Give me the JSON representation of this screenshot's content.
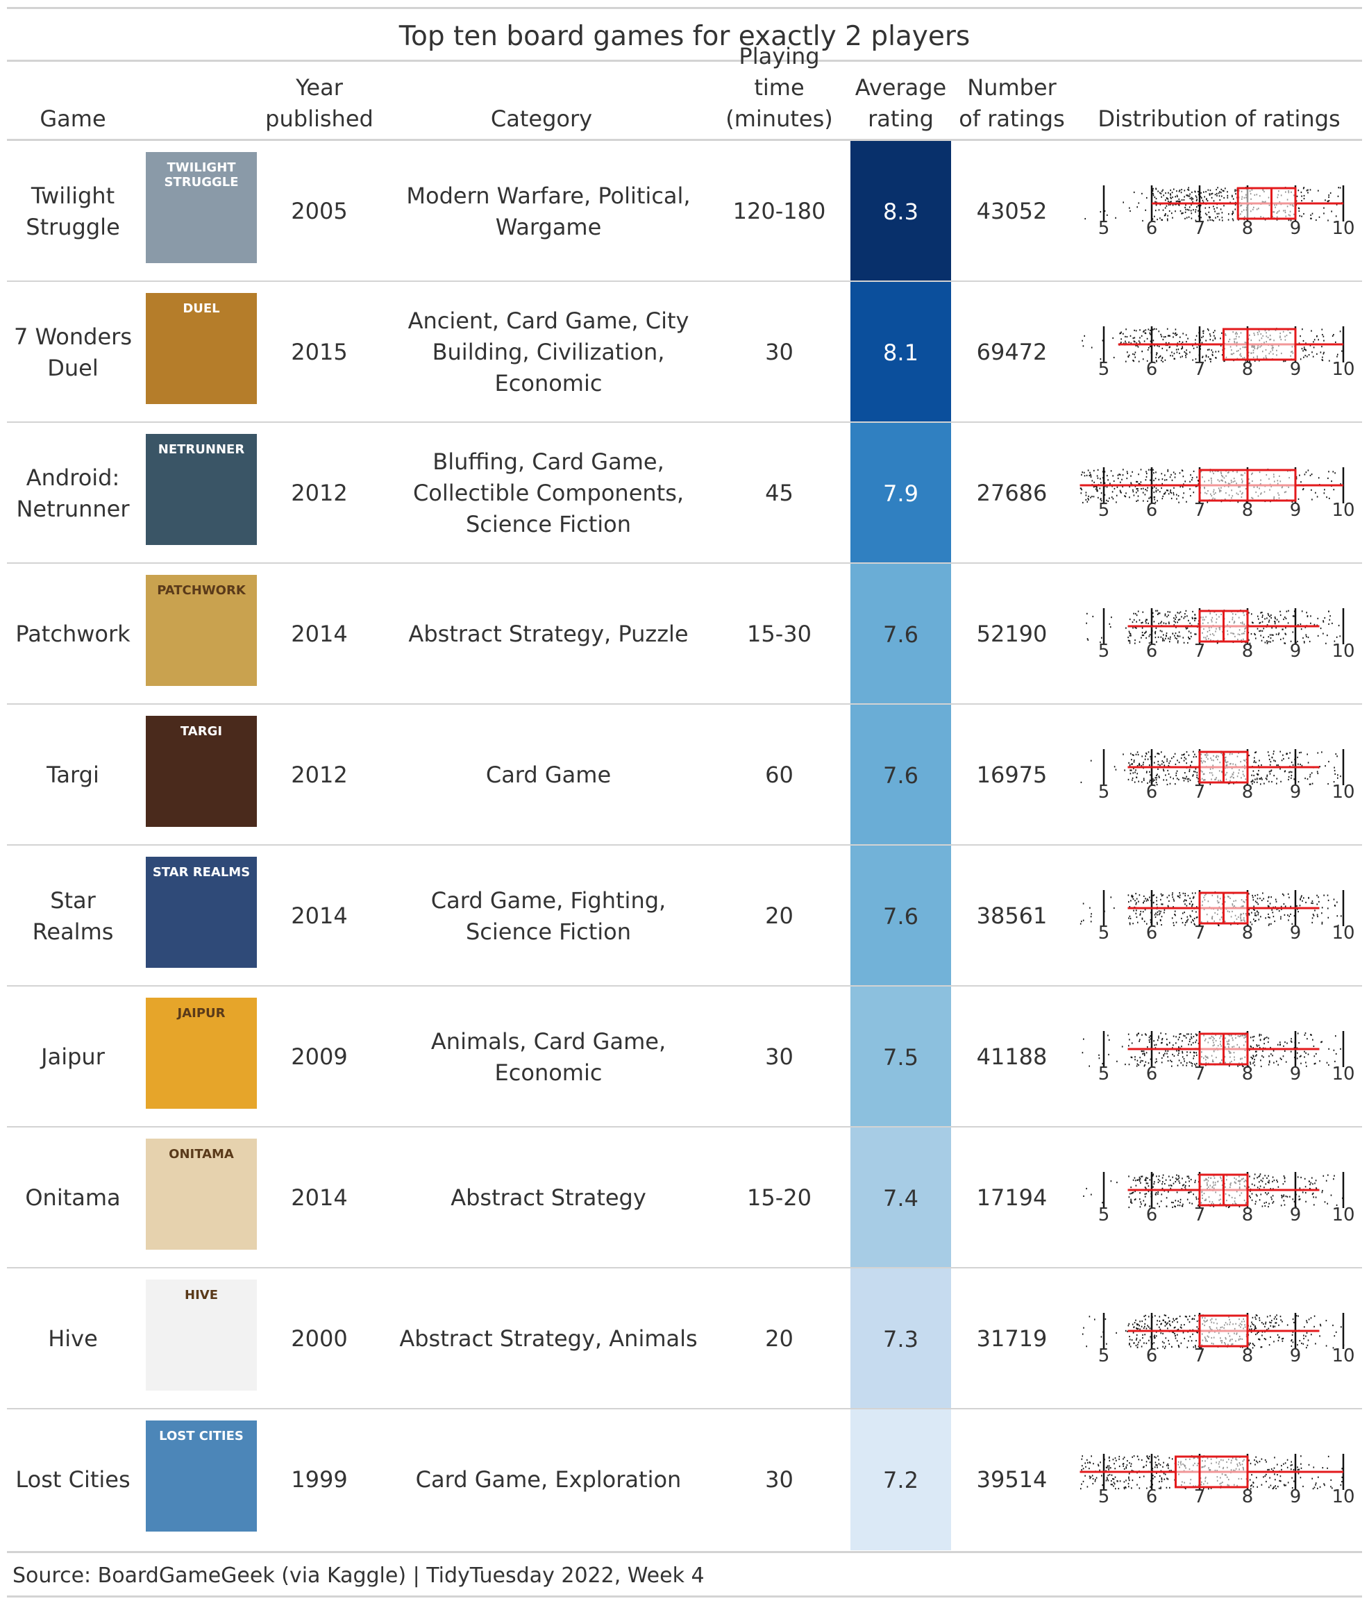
{
  "title": "Top ten board games for exactly 2 players",
  "columns": {
    "game": "Game",
    "year": "Year\npublished",
    "category": "Category",
    "time": "Playing time\n(minutes)",
    "rating": "Average\nrating",
    "num": "Number\nof ratings",
    "dist": "Distribution of ratings"
  },
  "source": "Source: BoardGameGeek (via Kaggle) | TidyTuesday 2022, Week 4",
  "colors": {
    "box": "#e31a1c",
    "points": "#111111",
    "text_dark": "#333333",
    "text_light": "#ffffff"
  },
  "axis_ticks": [
    "5",
    "6",
    "7",
    "8",
    "9",
    "10"
  ],
  "chart_data": {
    "type": "table",
    "distribution_axis": {
      "xlim": [
        4.5,
        10
      ],
      "ticks": [
        5,
        6,
        7,
        8,
        9,
        10
      ]
    },
    "rows": [
      {
        "game": "Twilight Struggle",
        "year": "2005",
        "category": "Modern Warfare, Political, Wargame",
        "time": "120-180",
        "rating": "8.3",
        "num_ratings": "43052",
        "rating_value": 8.3,
        "fill": "#08306b",
        "text_color": "#ffffff",
        "cover_text": "TWILIGHT STRUGGLE",
        "cover_bg": "#8a9aa8",
        "box": {
          "lower": 6.0,
          "q1": 7.8,
          "median": 8.5,
          "q3": 9.0,
          "upper": 10
        }
      },
      {
        "game": "7 Wonders Duel",
        "year": "2015",
        "category": "Ancient, Card Game, City Building, Civilization, Economic",
        "time": "30",
        "rating": "8.1",
        "num_ratings": "69472",
        "rating_value": 8.1,
        "fill": "#0b4f9c",
        "text_color": "#ffffff",
        "cover_text": "DUEL",
        "cover_bg": "#b57d2a",
        "box": {
          "lower": 5.3,
          "q1": 7.5,
          "median": 8.0,
          "q3": 9.0,
          "upper": 10
        }
      },
      {
        "game": "Android: Netrunner",
        "year": "2012",
        "category": "Bluffing, Card Game, Collectible Components, Science Fiction",
        "time": "45",
        "rating": "7.9",
        "num_ratings": "27686",
        "rating_value": 7.9,
        "fill": "#3080c1",
        "text_color": "#ffffff",
        "cover_text": "NETRUNNER",
        "cover_bg": "#3a5566",
        "box": {
          "lower": 4.5,
          "q1": 7.0,
          "median": 8.0,
          "q3": 9.0,
          "upper": 10
        }
      },
      {
        "game": "Patchwork",
        "year": "2014",
        "category": "Abstract Strategy, Puzzle",
        "time": "15-30",
        "rating": "7.6",
        "num_ratings": "52190",
        "rating_value": 7.6,
        "fill": "#6aadd6",
        "text_color": "#333333",
        "cover_text": "PATCHWORK",
        "cover_bg": "#c9a24f",
        "box": {
          "lower": 5.5,
          "q1": 7.0,
          "median": 7.5,
          "q3": 8.0,
          "upper": 9.5
        }
      },
      {
        "game": "Targi",
        "year": "2012",
        "category": "Card Game",
        "time": "60",
        "rating": "7.6",
        "num_ratings": "16975",
        "rating_value": 7.6,
        "fill": "#6aadd6",
        "text_color": "#333333",
        "cover_text": "TARGI",
        "cover_bg": "#4a2a1c",
        "box": {
          "lower": 5.5,
          "q1": 7.0,
          "median": 7.5,
          "q3": 8.0,
          "upper": 9.5
        }
      },
      {
        "game": "Star Realms",
        "year": "2014",
        "category": "Card Game, Fighting, Science Fiction",
        "time": "20",
        "rating": "7.6",
        "num_ratings": "38561",
        "rating_value": 7.6,
        "fill": "#72b2d8",
        "text_color": "#333333",
        "cover_text": "STAR REALMS",
        "cover_bg": "#2f4a78",
        "box": {
          "lower": 5.5,
          "q1": 7.0,
          "median": 7.5,
          "q3": 8.0,
          "upper": 9.5
        }
      },
      {
        "game": "Jaipur",
        "year": "2009",
        "category": "Animals, Card Game, Economic",
        "time": "30",
        "rating": "7.5",
        "num_ratings": "41188",
        "rating_value": 7.5,
        "fill": "#8cc0de",
        "text_color": "#333333",
        "cover_text": "JAIPUR",
        "cover_bg": "#e6a52a",
        "box": {
          "lower": 5.5,
          "q1": 7.0,
          "median": 7.5,
          "q3": 8.0,
          "upper": 9.5
        }
      },
      {
        "game": "Onitama",
        "year": "2014",
        "category": "Abstract Strategy",
        "time": "15-20",
        "rating": "7.4",
        "num_ratings": "17194",
        "rating_value": 7.4,
        "fill": "#a7cce5",
        "text_color": "#333333",
        "cover_text": "ONITAMA",
        "cover_bg": "#e6d2ae",
        "box": {
          "lower": 5.5,
          "q1": 7.0,
          "median": 7.5,
          "q3": 8.0,
          "upper": 9.5
        }
      },
      {
        "game": "Hive",
        "year": "2000",
        "category": "Abstract Strategy, Animals",
        "time": "20",
        "rating": "7.3",
        "num_ratings": "31719",
        "rating_value": 7.3,
        "fill": "#c6dbef",
        "text_color": "#333333",
        "cover_text": "HIVE",
        "cover_bg": "#f2f2f2",
        "box": {
          "lower": 5.5,
          "q1": 7.0,
          "median": 7.0,
          "q3": 8.0,
          "upper": 9.5
        }
      },
      {
        "game": "Lost Cities",
        "year": "1999",
        "category": "Card Game, Exploration",
        "time": "30",
        "rating": "7.2",
        "num_ratings": "39514",
        "rating_value": 7.2,
        "fill": "#dbe9f6",
        "text_color": "#333333",
        "cover_text": "LOST CITIES",
        "cover_bg": "#4c86b8",
        "box": {
          "lower": 4.5,
          "q1": 6.5,
          "median": 7.0,
          "q3": 8.0,
          "upper": 10
        }
      }
    ]
  }
}
